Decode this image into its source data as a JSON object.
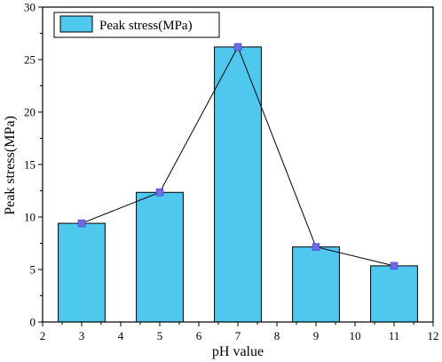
{
  "chart_data": {
    "type": "bar",
    "x": [
      3,
      5,
      7,
      9,
      11
    ],
    "series": [
      {
        "name": "Peak stress(MPa)",
        "values": [
          9.4,
          12.35,
          26.2,
          7.15,
          5.35
        ]
      }
    ],
    "overlay_line": true,
    "xlabel": "pH value",
    "ylabel": "Peak stress(MPa)",
    "xlim": [
      2,
      12
    ],
    "ylim": [
      0,
      30
    ],
    "xticks": [
      2,
      3,
      4,
      5,
      6,
      7,
      8,
      9,
      10,
      11,
      12
    ],
    "yticks": [
      0,
      5,
      10,
      15,
      20,
      25,
      30
    ],
    "legend_position": "top-left",
    "grid": false,
    "colors": {
      "bar_fill": "#4FC8F0",
      "bar_stroke": "#000000",
      "line": "#000000",
      "marker": "#6B6BE6"
    }
  }
}
